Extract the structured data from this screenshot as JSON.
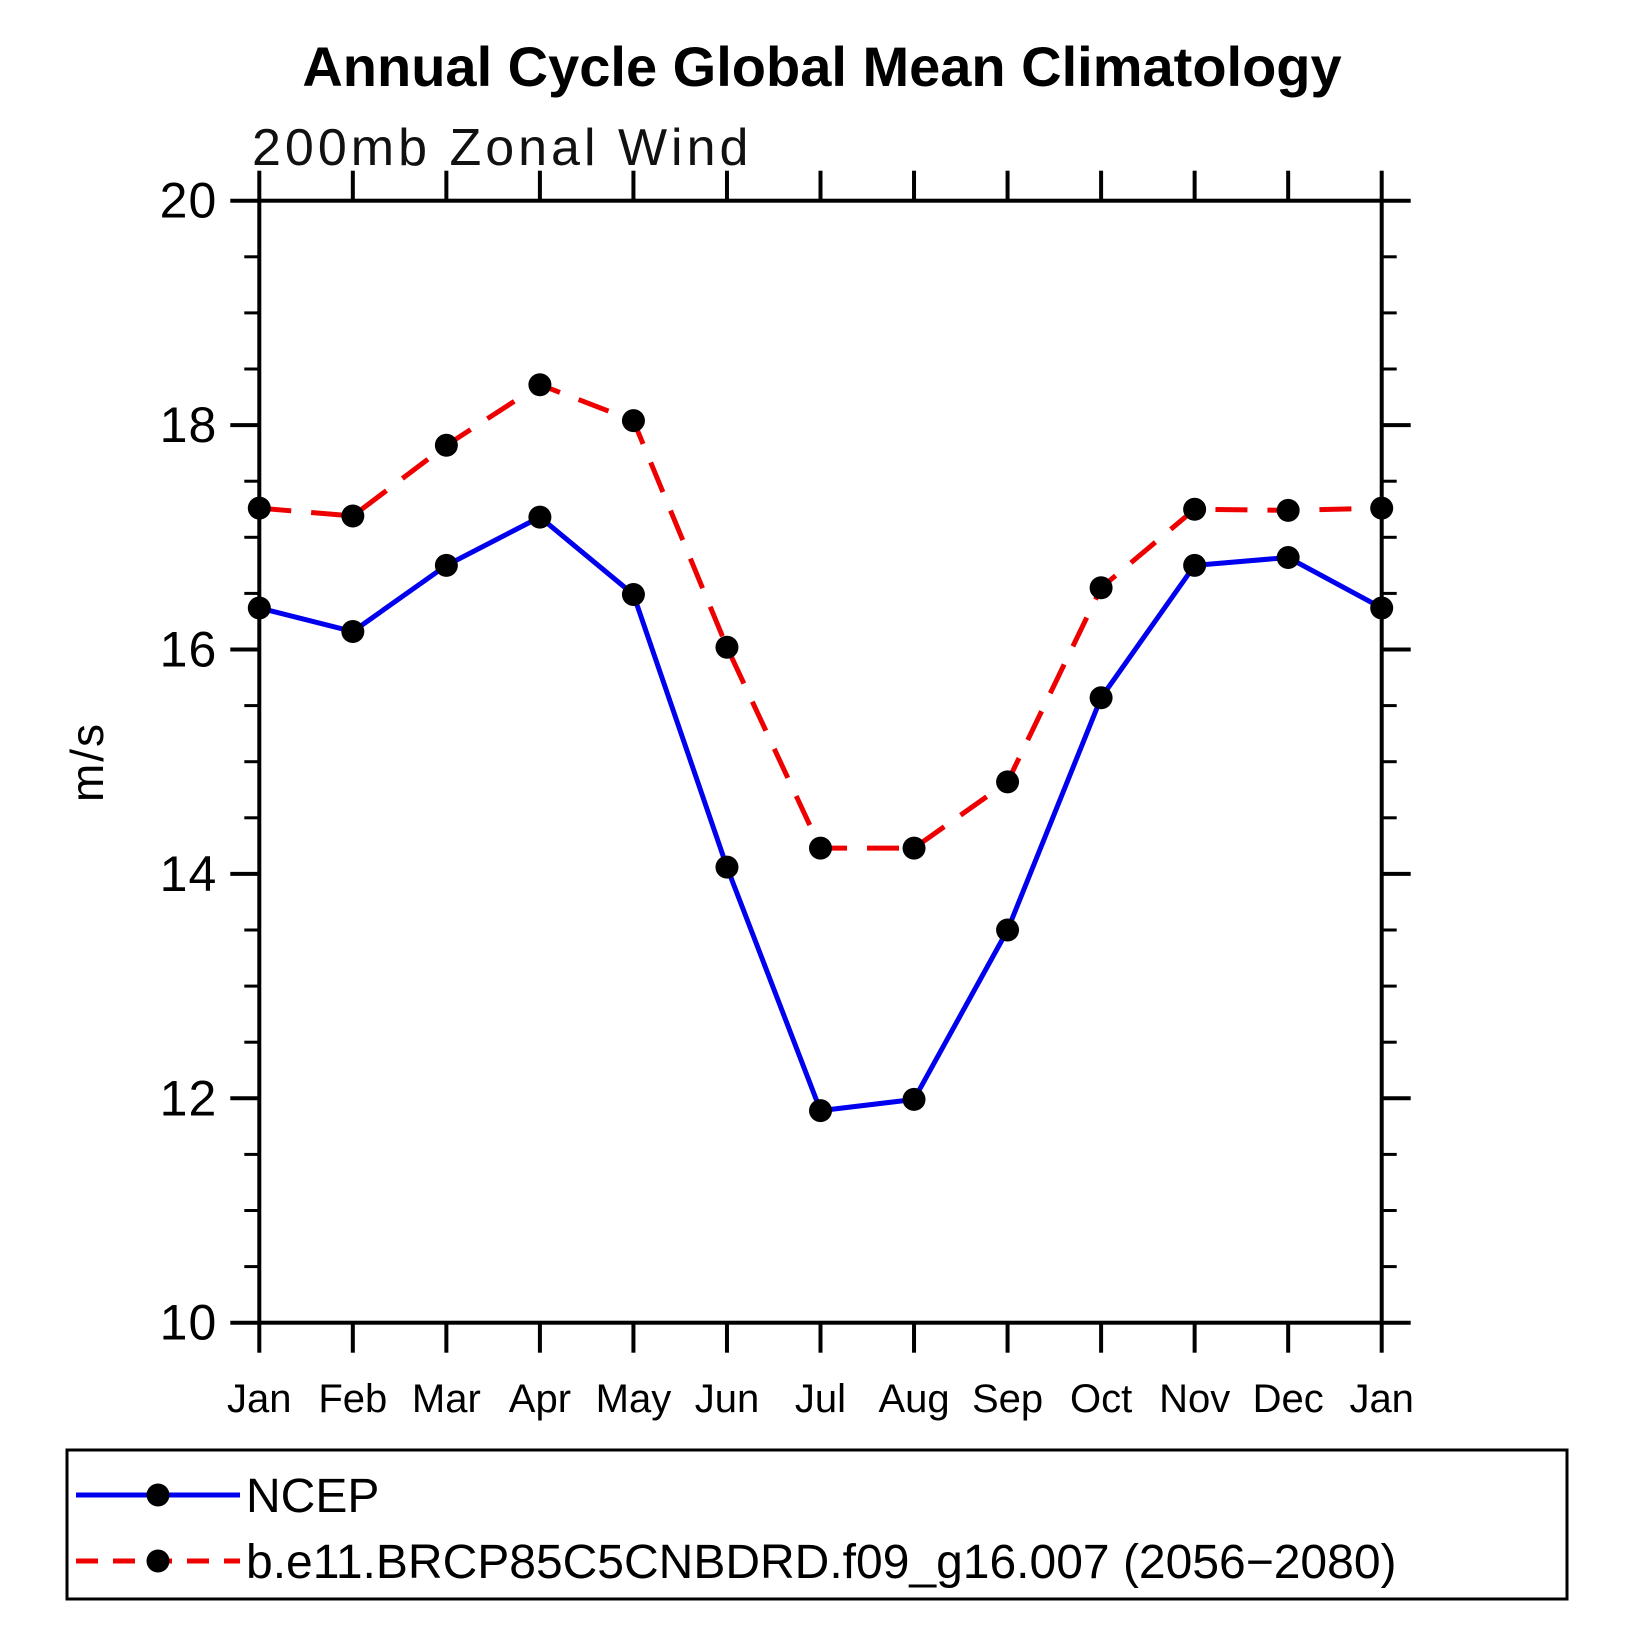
{
  "chart_data": {
    "type": "line",
    "title": "Annual Cycle Global Mean Climatology",
    "subtitle": "200mb Zonal Wind",
    "xlabel": "",
    "ylabel": "m/s",
    "categories": [
      "Jan",
      "Feb",
      "Mar",
      "Apr",
      "May",
      "Jun",
      "Jul",
      "Aug",
      "Sep",
      "Oct",
      "Nov",
      "Dec",
      "Jan"
    ],
    "ylim": [
      10,
      20
    ],
    "y_major_ticks": [
      10,
      12,
      14,
      16,
      18,
      20
    ],
    "y_minor_step": 0.5,
    "grid": false,
    "legend_position": "bottom",
    "colors": {
      "ncep_line": "#0000ee",
      "model_line": "#ee0000",
      "marker": "#000000",
      "axis": "#000000"
    },
    "series": [
      {
        "name": "NCEP",
        "style": "solid",
        "color": "#0000ee",
        "marker": "circle",
        "marker_color": "#000000",
        "values": [
          16.37,
          16.16,
          16.75,
          17.18,
          16.49,
          14.06,
          11.89,
          11.99,
          13.5,
          15.57,
          16.75,
          16.82,
          16.37
        ]
      },
      {
        "name": "b.e11.BRCP85C5CNBDRD.f09_g16.007 (2056−2080)",
        "style": "dashed",
        "color": "#ee0000",
        "marker": "circle",
        "marker_color": "#000000",
        "values": [
          17.26,
          17.19,
          17.82,
          18.36,
          18.04,
          16.02,
          14.23,
          14.23,
          14.82,
          16.55,
          17.25,
          17.24,
          17.26
        ]
      }
    ]
  }
}
